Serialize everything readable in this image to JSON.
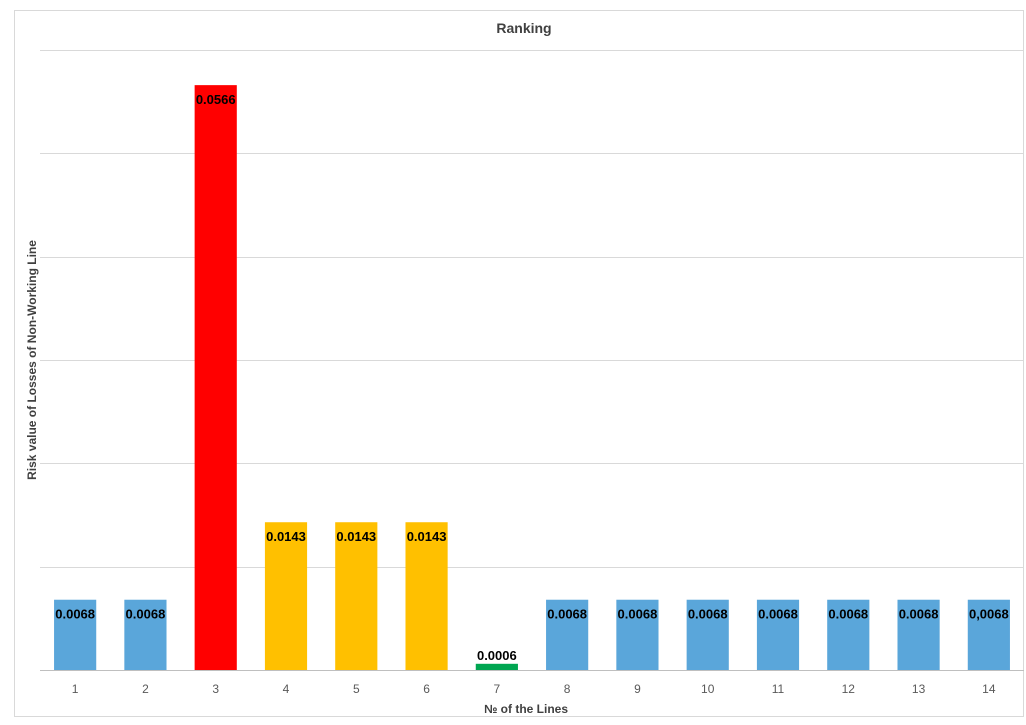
{
  "chart_data": {
    "type": "bar",
    "title": "Ranking",
    "xlabel": "№ of  the Lines",
    "ylabel": "Risk value of Losses of Non-Working Line",
    "categories": [
      "1",
      "2",
      "3",
      "4",
      "5",
      "6",
      "7",
      "8",
      "9",
      "10",
      "11",
      "12",
      "13",
      "14"
    ],
    "values": [
      0.0068,
      0.0068,
      0.0566,
      0.0143,
      0.0143,
      0.0143,
      0.0006,
      0.0068,
      0.0068,
      0.0068,
      0.0068,
      0.0068,
      0.0068,
      0.0068
    ],
    "data_labels": [
      "0.0068",
      "0.0068",
      "0.0566",
      "0.0143",
      "0.0143",
      "0.0143",
      "0.0006",
      "0.0068",
      "0.0068",
      "0.0068",
      "0.0068",
      "0.0068",
      "0.0068",
      "0,0068"
    ],
    "bar_colors": [
      "#5aa6da",
      "#5aa6da",
      "#ff0000",
      "#ffc000",
      "#ffc000",
      "#ffc000",
      "#00a651",
      "#5aa6da",
      "#5aa6da",
      "#5aa6da",
      "#5aa6da",
      "#5aa6da",
      "#5aa6da",
      "#5aa6da"
    ],
    "ylim": [
      0,
      0.06
    ],
    "gridlines": [
      0.01,
      0.02,
      0.03,
      0.04,
      0.05,
      0.06
    ],
    "grid": true,
    "y_tick_labels_visible": false,
    "legend": "none"
  }
}
